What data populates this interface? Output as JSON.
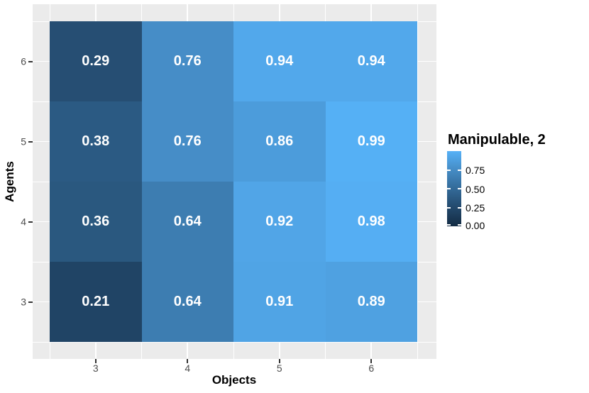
{
  "chart_data": {
    "type": "heatmap",
    "xlabel": "Objects",
    "ylabel": "Agents",
    "x_categories": [
      "3",
      "4",
      "5",
      "6"
    ],
    "y_categories_top_to_bottom": [
      "6",
      "5",
      "4",
      "3"
    ],
    "rows_top_to_bottom": [
      {
        "agents": "6",
        "values": [
          0.29,
          0.76,
          0.94,
          0.94
        ]
      },
      {
        "agents": "5",
        "values": [
          0.38,
          0.76,
          0.86,
          0.99
        ]
      },
      {
        "agents": "4",
        "values": [
          0.36,
          0.64,
          0.92,
          0.98
        ]
      },
      {
        "agents": "3",
        "values": [
          0.21,
          0.64,
          0.91,
          0.89
        ]
      }
    ],
    "value_label_decimals": 2,
    "value_label_color": "#FFFFFF",
    "panel_bg": "#EBEBEB",
    "grid": true,
    "tick_color": "#333333",
    "tick_label_color": "#4D4D4D",
    "legend": {
      "title": "Manipulable, 2",
      "position": "right",
      "range": [
        0,
        1
      ],
      "tick_values": [
        0.75,
        0.5,
        0.25,
        0.0
      ],
      "tick_labels": [
        "0.75",
        "0.50",
        "0.25",
        "0.00"
      ]
    },
    "colorscale": {
      "low": "#132B43",
      "high": "#56B1F7",
      "stops": [
        {
          "t": 0.0,
          "color": "#132B43"
        },
        {
          "t": 0.25,
          "color": "#23496C"
        },
        {
          "t": 0.5,
          "color": "#336A98"
        },
        {
          "t": 0.75,
          "color": "#458CC5"
        },
        {
          "t": 1.0,
          "color": "#56B1F7"
        }
      ]
    }
  }
}
